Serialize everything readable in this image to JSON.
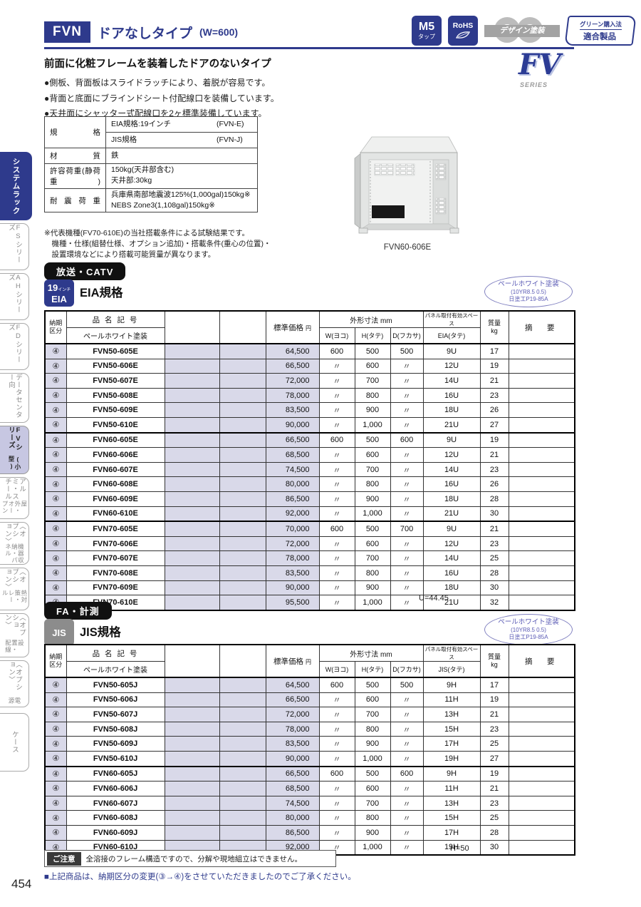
{
  "page": {
    "number": "454"
  },
  "header": {
    "model_code": "FVN",
    "title": "ドアなしタイプ",
    "width_note": "(W=600)",
    "badges": {
      "m5": {
        "l1": "M5",
        "l2": "タップ"
      },
      "rohs": {
        "label": "RoHS"
      },
      "design": {
        "label": "デザイン塗装"
      },
      "green": {
        "l1": "グリーン購入法",
        "l2": "適合製品"
      }
    },
    "series_logo": {
      "fv": "FV",
      "series": "SERIES"
    }
  },
  "sidebar": {
    "items": [
      {
        "id": "system-rack",
        "label": "システムラック",
        "lines": [
          "システムラック"
        ],
        "variant": "primary"
      },
      {
        "id": "fs-series",
        "label": "FSシリーズ",
        "lines": [
          "FSシリーズ"
        ]
      },
      {
        "id": "ah-series",
        "label": "AHシリーズ",
        "lines": [
          "AHシリーズ"
        ]
      },
      {
        "id": "fd-series",
        "label": "FDシリーズ",
        "lines": [
          "FDシリーズ"
        ]
      },
      {
        "id": "datacenter",
        "label": "データセンター向",
        "lines": [
          "データセンター向"
        ]
      },
      {
        "id": "fv-series-small",
        "label": "FVシリーズ(小型)",
        "lines": [
          "FVシリーズ",
          "(小型)"
        ],
        "variant": "selected"
      },
      {
        "id": "alumi-steel-outdoor-open",
        "label": "アルミ・スチール 屋外・オープン",
        "lines": [
          "アルミ・スチール",
          "屋外・オープン"
        ]
      },
      {
        "id": "equipment-storage-panel-option",
        "label": "機器収納・パネル〈オプション〉",
        "lines": [
          "〈オプション〉",
          "機器収納・パネル"
        ]
      },
      {
        "id": "thermal-rail-option",
        "label": "熱対策・レール〈オプション〉",
        "lines": [
          "〈オプション〉",
          "熱対策・レール"
        ]
      },
      {
        "id": "installation-wiring-option",
        "label": "設置・配線〈オプション〉",
        "lines": [
          "〈オプション〉",
          "設置・配線"
        ]
      },
      {
        "id": "power-option",
        "label": "電源〈オプション〉",
        "lines": [
          "〈オプション〉",
          "電源"
        ]
      },
      {
        "id": "case",
        "label": "ケース",
        "lines": [
          "ケース"
        ]
      }
    ]
  },
  "intro": {
    "heading": "前面に化粧フレームを装着したドアのないタイプ",
    "bullets": [
      "●側板、背面板はスライドラッチにより、着脱が容易です。",
      "●背面と底面にブラインドシート付配線口を装備しています。",
      "●天井面にシャッター式配線口を2ヶ標準装備しています。"
    ]
  },
  "spec_table": {
    "rows": [
      {
        "label": "規格",
        "cells": [
          {
            "t": "EIA規格:19インチ",
            "c": "(FVN-E)"
          },
          {
            "t": "JIS規格",
            "c": "(FVN-J)"
          }
        ]
      },
      {
        "label": "材質",
        "cells": [
          {
            "t": "鉄"
          }
        ]
      },
      {
        "label": "許容荷重(静荷重)",
        "cells": [
          {
            "t": "150kg(天井部含む)\n天井部:30kg"
          }
        ]
      },
      {
        "label": "耐震荷重",
        "cells": [
          {
            "t": "兵庫県南部地震波125%(1,000gal)150kg※\nNEBS Zone3(1,108gal)150kg※"
          }
        ]
      }
    ],
    "footnote": [
      "※代表機種(FV70-610E)の当社搭載条件による試験結果です。",
      "　機種・仕様(組替仕様、オプション追加)・搭載条件(重心の位置)・",
      "　設置環境などにより搭載可能質量が異なります。"
    ]
  },
  "figure": {
    "caption": "FVN60-606E"
  },
  "eia": {
    "category": "放送・CATV",
    "badge": {
      "num": "19",
      "unit": "インチ",
      "std": "EIA"
    },
    "heading": "EIA規格",
    "paint": {
      "l1": "ペールホワイト塗装",
      "l2": "(10YR8.5 0.5)",
      "l3": "日塗工P19-85A"
    },
    "headers": {
      "delivery_l1": "納期",
      "delivery_l2": "区分",
      "name": "品 名 記 号",
      "name_sub": "ペールホワイト塗装",
      "price": "標準価格",
      "price_unit": "円",
      "dims": "外形寸法 mm",
      "w": "W(ヨコ)",
      "h": "H(タテ)",
      "d": "D(フカサ)",
      "panel": "パネル取付有効スペース",
      "panel_sub": "EIA(タテ)",
      "weight": "質量",
      "weight_unit": "kg",
      "remarks": "摘　要"
    },
    "rows": [
      {
        "g": 1,
        "delivery": "④",
        "name": "FVN50-605E",
        "price": "64,500",
        "w": "600",
        "h": "500",
        "d": "500",
        "space": "9U",
        "weight": "17"
      },
      {
        "g": 1,
        "delivery": "④",
        "name": "FVN50-606E",
        "price": "66,500",
        "w": "〃",
        "h": "600",
        "d": "〃",
        "space": "12U",
        "weight": "19"
      },
      {
        "g": 1,
        "delivery": "④",
        "name": "FVN50-607E",
        "price": "72,000",
        "w": "〃",
        "h": "700",
        "d": "〃",
        "space": "14U",
        "weight": "21"
      },
      {
        "g": 1,
        "delivery": "④",
        "name": "FVN50-608E",
        "price": "78,000",
        "w": "〃",
        "h": "800",
        "d": "〃",
        "space": "16U",
        "weight": "23"
      },
      {
        "g": 1,
        "delivery": "④",
        "name": "FVN50-609E",
        "price": "83,500",
        "w": "〃",
        "h": "900",
        "d": "〃",
        "space": "18U",
        "weight": "26"
      },
      {
        "g": 1,
        "delivery": "④",
        "name": "FVN50-610E",
        "price": "90,000",
        "w": "〃",
        "h": "1,000",
        "d": "〃",
        "space": "21U",
        "weight": "27"
      },
      {
        "g": 2,
        "delivery": "④",
        "name": "FVN60-605E",
        "price": "66,500",
        "w": "600",
        "h": "500",
        "d": "600",
        "space": "9U",
        "weight": "19"
      },
      {
        "g": 2,
        "delivery": "④",
        "name": "FVN60-606E",
        "price": "68,500",
        "w": "〃",
        "h": "600",
        "d": "〃",
        "space": "12U",
        "weight": "21"
      },
      {
        "g": 2,
        "delivery": "④",
        "name": "FVN60-607E",
        "price": "74,500",
        "w": "〃",
        "h": "700",
        "d": "〃",
        "space": "14U",
        "weight": "23"
      },
      {
        "g": 2,
        "delivery": "④",
        "name": "FVN60-608E",
        "price": "80,000",
        "w": "〃",
        "h": "800",
        "d": "〃",
        "space": "16U",
        "weight": "26"
      },
      {
        "g": 2,
        "delivery": "④",
        "name": "FVN60-609E",
        "price": "86,500",
        "w": "〃",
        "h": "900",
        "d": "〃",
        "space": "18U",
        "weight": "28"
      },
      {
        "g": 2,
        "delivery": "④",
        "name": "FVN60-610E",
        "price": "92,000",
        "w": "〃",
        "h": "1,000",
        "d": "〃",
        "space": "21U",
        "weight": "30"
      },
      {
        "g": 3,
        "delivery": "④",
        "name": "FVN70-605E",
        "price": "70,000",
        "w": "600",
        "h": "500",
        "d": "700",
        "space": "9U",
        "weight": "21"
      },
      {
        "g": 3,
        "delivery": "④",
        "name": "FVN70-606E",
        "price": "72,000",
        "w": "〃",
        "h": "600",
        "d": "〃",
        "space": "12U",
        "weight": "23"
      },
      {
        "g": 3,
        "delivery": "④",
        "name": "FVN70-607E",
        "price": "78,000",
        "w": "〃",
        "h": "700",
        "d": "〃",
        "space": "14U",
        "weight": "25"
      },
      {
        "g": 3,
        "delivery": "④",
        "name": "FVN70-608E",
        "price": "83,500",
        "w": "〃",
        "h": "800",
        "d": "〃",
        "space": "16U",
        "weight": "28"
      },
      {
        "g": 3,
        "delivery": "④",
        "name": "FVN70-609E",
        "price": "90,000",
        "w": "〃",
        "h": "900",
        "d": "〃",
        "space": "18U",
        "weight": "30"
      },
      {
        "g": 3,
        "delivery": "④",
        "name": "FVN70-610E",
        "price": "95,500",
        "w": "〃",
        "h": "1,000",
        "d": "〃",
        "space": "21U",
        "weight": "32"
      }
    ],
    "note": "U=44.45"
  },
  "jis": {
    "category": "FA・計測",
    "badge": {
      "std": "JIS"
    },
    "heading": "JIS規格",
    "paint": {
      "l1": "ペールホワイト塗装",
      "l2": "(10YR8.5 0.5)",
      "l3": "日塗工P19-85A"
    },
    "headers": {
      "delivery_l1": "納期",
      "delivery_l2": "区分",
      "name": "品 名 記 号",
      "name_sub": "ペールホワイト塗装",
      "price": "標準価格",
      "price_unit": "円",
      "dims": "外形寸法 mm",
      "w": "W(ヨコ)",
      "h": "H(タテ)",
      "d": "D(フカサ)",
      "panel": "パネル取付有効スペース",
      "panel_sub": "JIS(タテ)",
      "weight": "質量",
      "weight_unit": "kg",
      "remarks": "摘　要"
    },
    "rows": [
      {
        "g": 1,
        "delivery": "④",
        "name": "FVN50-605J",
        "price": "64,500",
        "w": "600",
        "h": "500",
        "d": "500",
        "space": "9H",
        "weight": "17"
      },
      {
        "g": 1,
        "delivery": "④",
        "name": "FVN50-606J",
        "price": "66,500",
        "w": "〃",
        "h": "600",
        "d": "〃",
        "space": "11H",
        "weight": "19"
      },
      {
        "g": 1,
        "delivery": "④",
        "name": "FVN50-607J",
        "price": "72,000",
        "w": "〃",
        "h": "700",
        "d": "〃",
        "space": "13H",
        "weight": "21"
      },
      {
        "g": 1,
        "delivery": "④",
        "name": "FVN50-608J",
        "price": "78,000",
        "w": "〃",
        "h": "800",
        "d": "〃",
        "space": "15H",
        "weight": "23"
      },
      {
        "g": 1,
        "delivery": "④",
        "name": "FVN50-609J",
        "price": "83,500",
        "w": "〃",
        "h": "900",
        "d": "〃",
        "space": "17H",
        "weight": "25"
      },
      {
        "g": 1,
        "delivery": "④",
        "name": "FVN50-610J",
        "price": "90,000",
        "w": "〃",
        "h": "1,000",
        "d": "〃",
        "space": "19H",
        "weight": "27"
      },
      {
        "g": 2,
        "delivery": "④",
        "name": "FVN60-605J",
        "price": "66,500",
        "w": "600",
        "h": "500",
        "d": "600",
        "space": "9H",
        "weight": "19"
      },
      {
        "g": 2,
        "delivery": "④",
        "name": "FVN60-606J",
        "price": "68,500",
        "w": "〃",
        "h": "600",
        "d": "〃",
        "space": "11H",
        "weight": "21"
      },
      {
        "g": 2,
        "delivery": "④",
        "name": "FVN60-607J",
        "price": "74,500",
        "w": "〃",
        "h": "700",
        "d": "〃",
        "space": "13H",
        "weight": "23"
      },
      {
        "g": 2,
        "delivery": "④",
        "name": "FVN60-608J",
        "price": "80,000",
        "w": "〃",
        "h": "800",
        "d": "〃",
        "space": "15H",
        "weight": "25"
      },
      {
        "g": 2,
        "delivery": "④",
        "name": "FVN60-609J",
        "price": "86,500",
        "w": "〃",
        "h": "900",
        "d": "〃",
        "space": "17H",
        "weight": "28"
      },
      {
        "g": 2,
        "delivery": "④",
        "name": "FVN60-610J",
        "price": "92,000",
        "w": "〃",
        "h": "1,000",
        "d": "〃",
        "space": "19H",
        "weight": "30"
      }
    ],
    "note": "H=50"
  },
  "footer": {
    "caution_badge": "ご注意",
    "caution_text": "全溶接のフレーム構造ですので、分解や現地組立はできません。",
    "note": "■上記商品は、納期区分の変更(③→④)をさせていただきましたのでご了承ください。"
  }
}
